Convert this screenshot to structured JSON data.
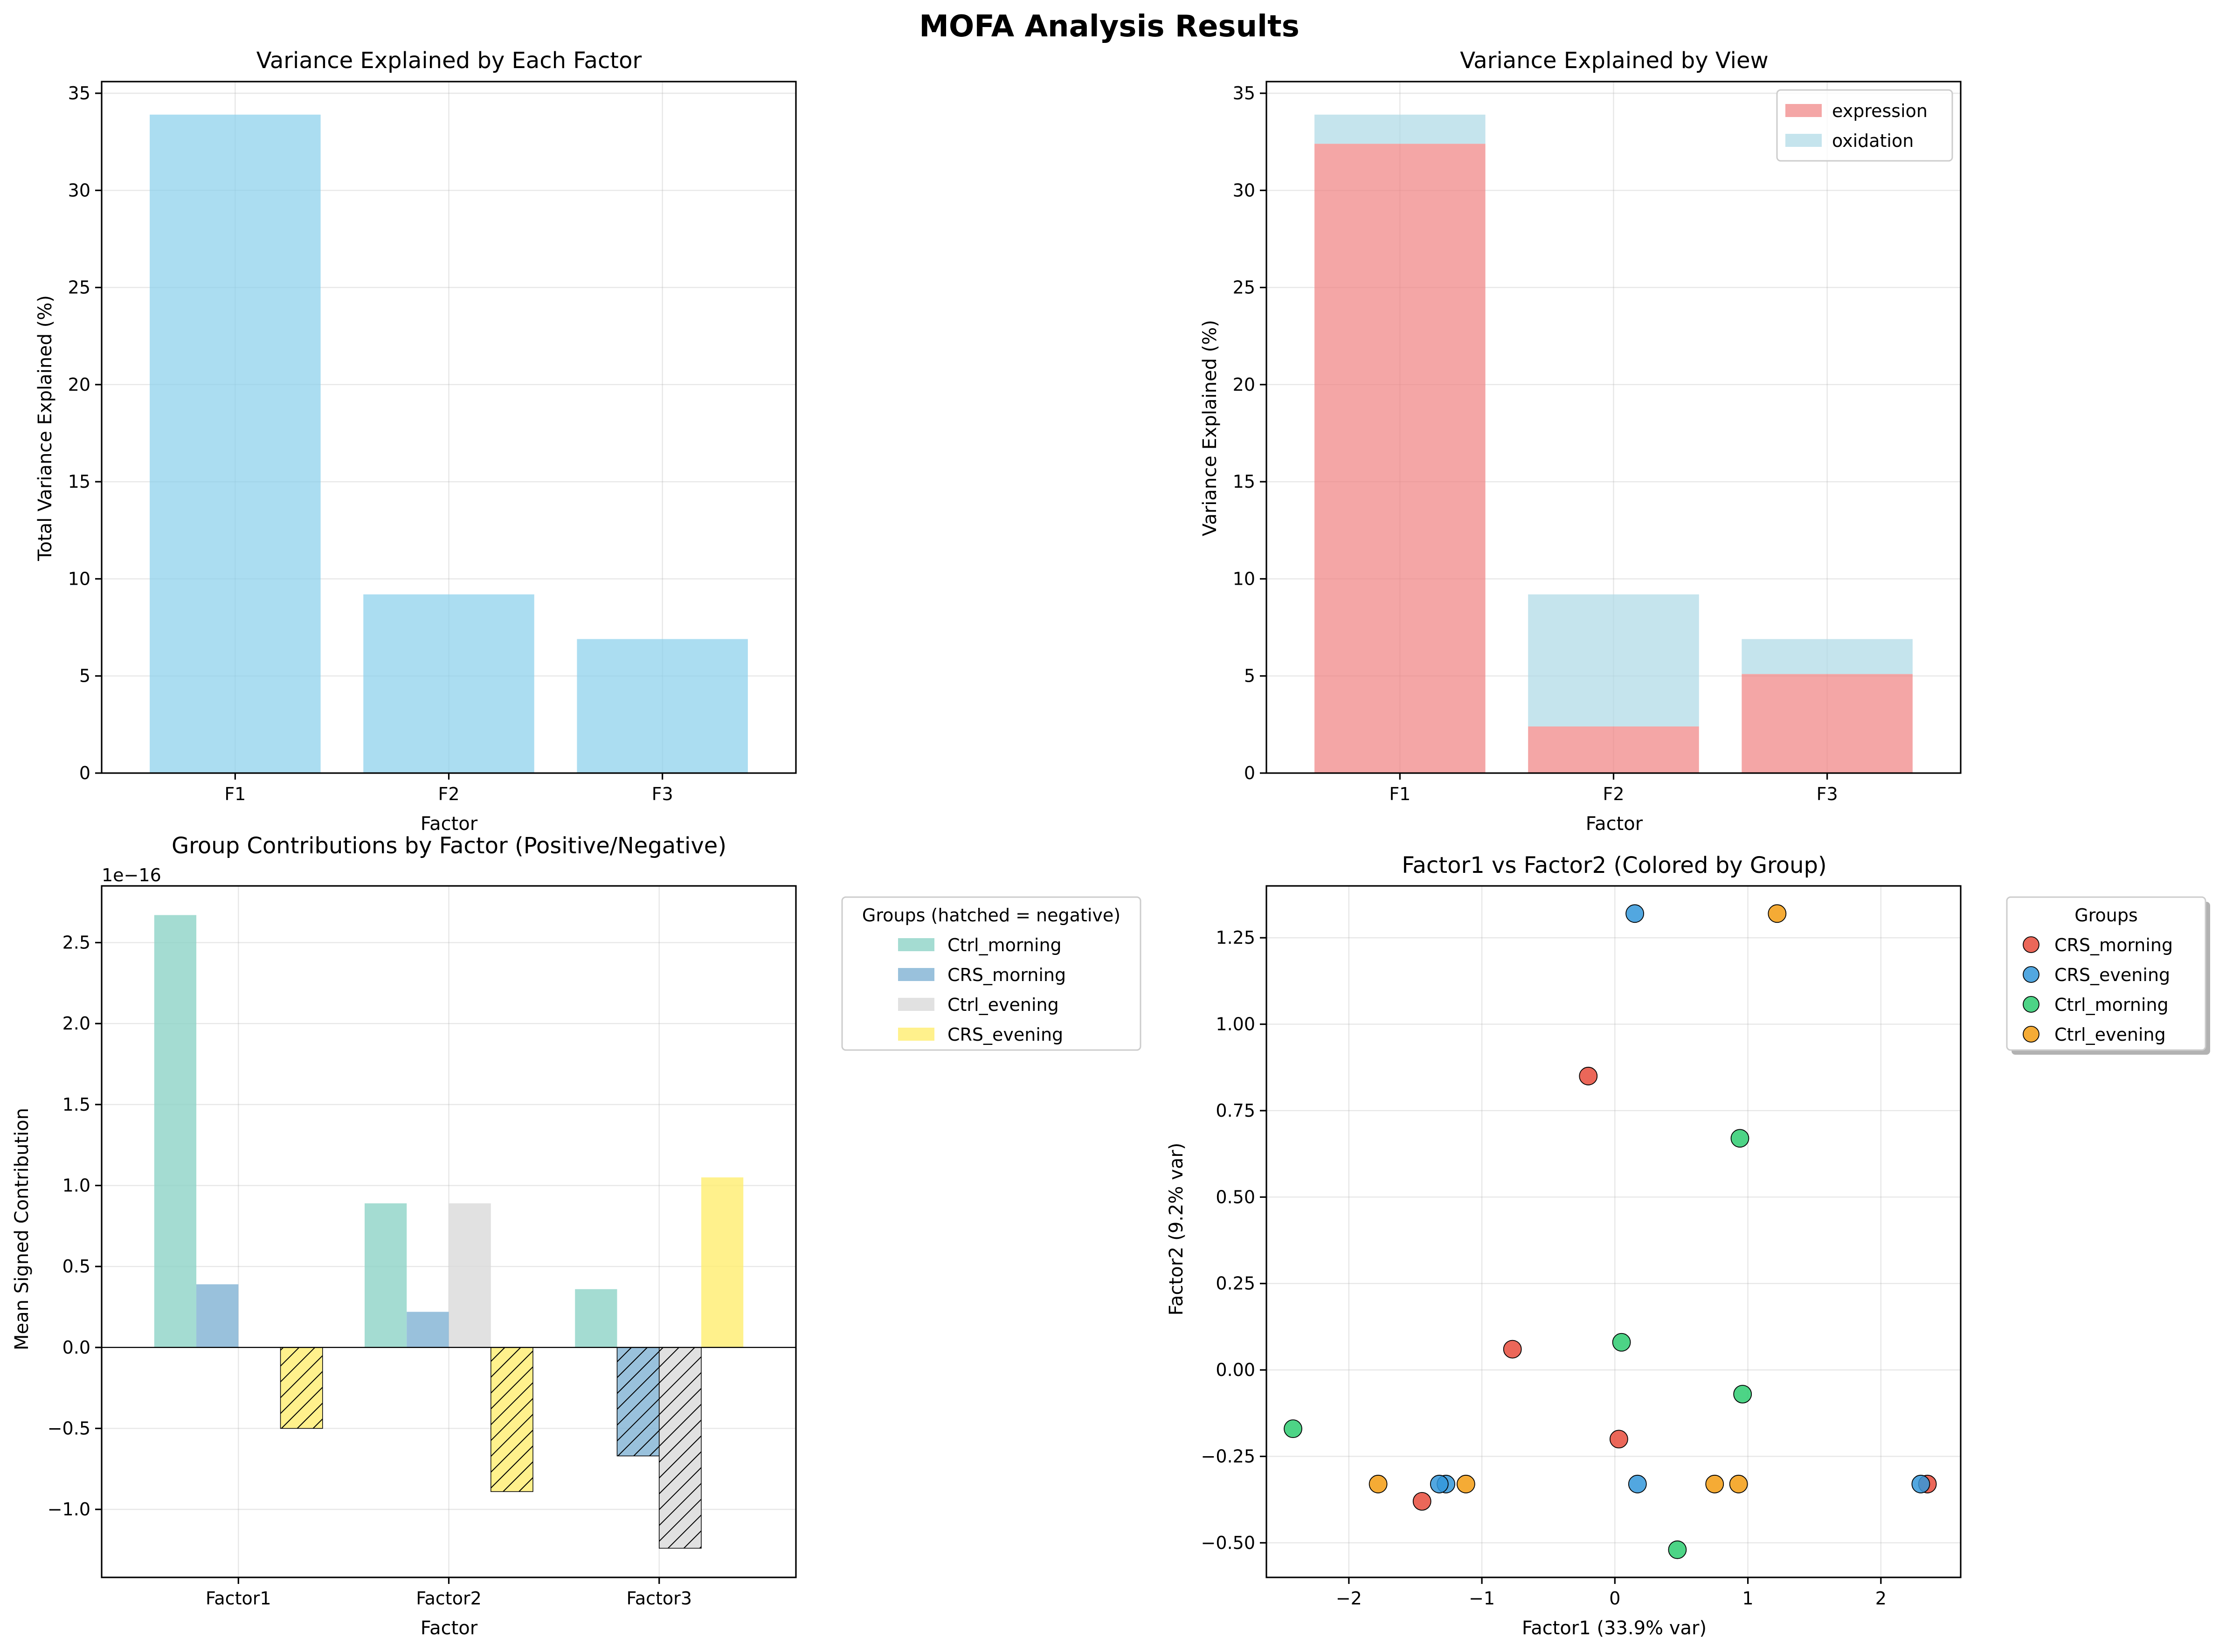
{
  "suptitle": "MOFA Analysis Results",
  "chart_data": [
    {
      "type": "bar",
      "title": "Variance Explained by Each Factor",
      "xlabel": "Factor",
      "ylabel": "Total Variance Explained (%)",
      "categories": [
        "F1",
        "F2",
        "F3"
      ],
      "values": [
        33.9,
        9.2,
        6.9
      ],
      "ylim": [
        0,
        35.6
      ],
      "yticks": [
        0,
        5,
        10,
        15,
        20,
        25,
        30,
        35
      ],
      "color": "#87ceeb",
      "grid": true
    },
    {
      "type": "bar",
      "title": "Variance Explained by View",
      "xlabel": "Factor",
      "ylabel": "Variance Explained (%)",
      "categories": [
        "F1",
        "F2",
        "F3"
      ],
      "series": [
        {
          "name": "expression",
          "values": [
            32.4,
            2.4,
            5.1
          ],
          "color": "#f08080"
        },
        {
          "name": "oxidation",
          "values": [
            1.5,
            6.8,
            1.8
          ],
          "color": "#add8e6"
        }
      ],
      "stacked": true,
      "ylim": [
        0,
        35.6
      ],
      "yticks": [
        0,
        5,
        10,
        15,
        20,
        25,
        30,
        35
      ],
      "legend": "top-right",
      "grid": true
    },
    {
      "type": "bar",
      "title": "Group Contributions by Factor (Positive/Negative)",
      "xlabel": "Factor",
      "ylabel": "Mean Signed Contribution",
      "offset_label": "1e−16",
      "categories": [
        "Factor1",
        "Factor2",
        "Factor3"
      ],
      "series": [
        {
          "name": "Ctrl_morning",
          "values": [
            2.67,
            0.89,
            0.36
          ],
          "color": "#8dd3c7"
        },
        {
          "name": "CRS_morning",
          "values": [
            0.39,
            0.22,
            -0.67
          ],
          "color": "#80b1d3"
        },
        {
          "name": "Ctrl_evening",
          "values": [
            0.0,
            0.89,
            -1.24
          ],
          "color": "#d9d9d9"
        },
        {
          "name": "CRS_evening",
          "values": [
            -0.5,
            -0.89,
            1.05
          ],
          "color": "#ffed6f"
        }
      ],
      "ylim": [
        -1.42,
        2.85
      ],
      "yticks": [
        -1.0,
        -0.5,
        0.0,
        0.5,
        1.0,
        1.5,
        2.0,
        2.5
      ],
      "ytick_labels": [
        "−1.0",
        "−0.5",
        "0.0",
        "0.5",
        "1.0",
        "1.5",
        "2.0",
        "2.5"
      ],
      "legend_title": "Groups (hatched = negative)",
      "legend": "outside right",
      "grid": true
    },
    {
      "type": "scatter",
      "title": "Factor1 vs Factor2 (Colored by Group)",
      "xlabel": "Factor1 (33.9% var)",
      "ylabel": "Factor2 (9.2% var)",
      "xlim": [
        -2.62,
        2.6
      ],
      "ylim": [
        -0.6,
        1.4
      ],
      "xticks": [
        -2,
        -1,
        0,
        1,
        2
      ],
      "xtick_labels": [
        "−2",
        "−1",
        "0",
        "1",
        "2"
      ],
      "yticks": [
        -0.5,
        -0.25,
        0.0,
        0.25,
        0.5,
        0.75,
        1.0,
        1.25
      ],
      "ytick_labels": [
        "−0.50",
        "−0.25",
        "0.00",
        "0.25",
        "0.50",
        "0.75",
        "1.00",
        "1.25"
      ],
      "legend_title": "Groups",
      "legend": "outside right",
      "grid": true,
      "series": [
        {
          "name": "CRS_morning",
          "color": "#e74c3c",
          "points": [
            [
              -0.2,
              0.85
            ],
            [
              -0.77,
              0.06
            ],
            [
              0.03,
              -0.2
            ],
            [
              -1.45,
              -0.38
            ],
            [
              2.35,
              -0.33
            ]
          ]
        },
        {
          "name": "CRS_evening",
          "color": "#3498db",
          "points": [
            [
              0.15,
              1.32
            ],
            [
              -1.27,
              -0.33
            ],
            [
              -1.32,
              -0.33
            ],
            [
              0.17,
              -0.33
            ],
            [
              2.3,
              -0.33
            ]
          ]
        },
        {
          "name": "Ctrl_morning",
          "color": "#2ecc71",
          "points": [
            [
              0.94,
              0.67
            ],
            [
              0.05,
              0.08
            ],
            [
              0.96,
              -0.07
            ],
            [
              -2.42,
              -0.17
            ],
            [
              0.47,
              -0.52
            ]
          ]
        },
        {
          "name": "Ctrl_evening",
          "color": "#f39c12",
          "points": [
            [
              1.22,
              1.32
            ],
            [
              -1.78,
              -0.33
            ],
            [
              -1.12,
              -0.33
            ],
            [
              0.75,
              -0.33
            ],
            [
              0.93,
              -0.33
            ]
          ]
        }
      ]
    }
  ]
}
